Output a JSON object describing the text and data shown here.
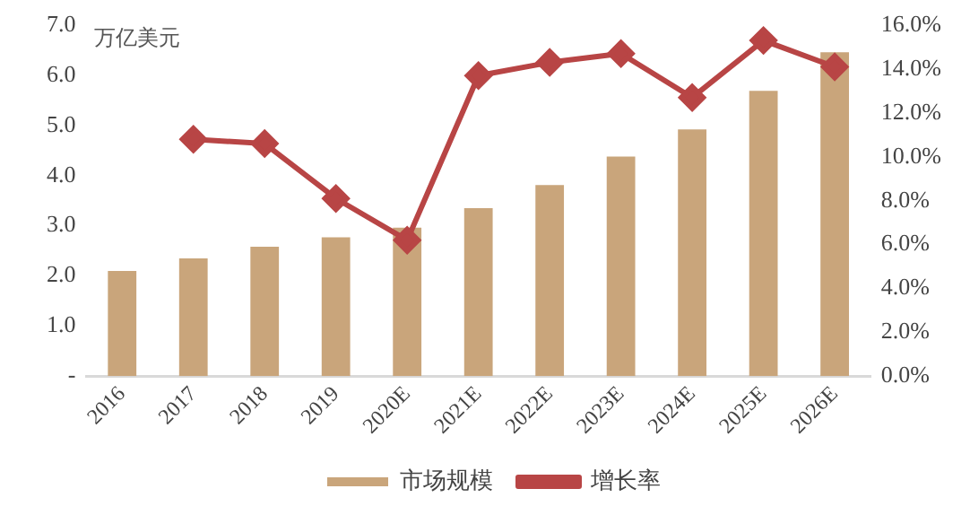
{
  "chart_data": {
    "type": "bar",
    "ylabel": "万亿美元",
    "categories": [
      "2016",
      "2017",
      "2018",
      "2019",
      "2020E",
      "2021E",
      "2022E",
      "2023E",
      "2024E",
      "2025E",
      "2026E"
    ],
    "series": [
      {
        "name": "市场规模",
        "color": "#c9a57b",
        "values": [
          2.1,
          2.35,
          2.58,
          2.77,
          2.96,
          3.35,
          3.81,
          4.38,
          4.92,
          5.69,
          6.46
        ]
      },
      {
        "name": "增长率",
        "type": "line",
        "axis": "y2",
        "color": "#b84545",
        "marker": "diamond",
        "values": [
          null,
          10.8,
          10.6,
          8.1,
          6.2,
          13.7,
          14.3,
          14.7,
          12.7,
          15.3,
          14.1
        ]
      }
    ],
    "ylim": [
      0,
      7
    ],
    "yticks": [
      {
        "value": 0,
        "label": "-"
      },
      {
        "value": 1,
        "label": "1.0"
      },
      {
        "value": 2,
        "label": "2.0"
      },
      {
        "value": 3,
        "label": "3.0"
      },
      {
        "value": 4,
        "label": "4.0"
      },
      {
        "value": 5,
        "label": "5.0"
      },
      {
        "value": 6,
        "label": "6.0"
      },
      {
        "value": 7,
        "label": "7.0"
      }
    ],
    "y2lim": [
      0,
      16
    ],
    "y2ticks": [
      {
        "value": 0,
        "label": "0.0%"
      },
      {
        "value": 2,
        "label": "2.0%"
      },
      {
        "value": 4,
        "label": "4.0%"
      },
      {
        "value": 6,
        "label": "6.0%"
      },
      {
        "value": 8,
        "label": "8.0%"
      },
      {
        "value": 10,
        "label": "10.0%"
      },
      {
        "value": 12,
        "label": "12.0%"
      },
      {
        "value": 14,
        "label": "14.0%"
      },
      {
        "value": 16,
        "label": "16.0%"
      }
    ],
    "grid": false,
    "legend": "bottom"
  }
}
